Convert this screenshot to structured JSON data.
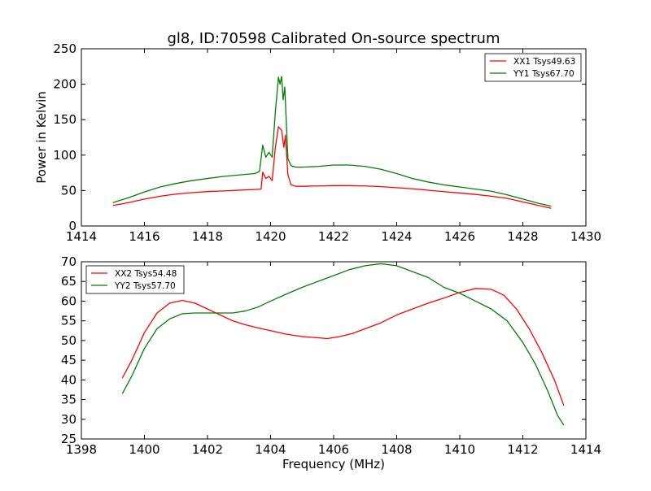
{
  "chart_data": [
    {
      "type": "line",
      "title": "gl8, ID:70598 Calibrated On-source spectrum",
      "xlabel": "",
      "ylabel": "Power in Kelvin",
      "xlim": [
        1414,
        1430
      ],
      "ylim": [
        0,
        250
      ],
      "xticks": [
        1414,
        1416,
        1418,
        1420,
        1422,
        1424,
        1426,
        1428,
        1430
      ],
      "yticks": [
        0,
        50,
        100,
        150,
        200,
        250
      ],
      "grid": false,
      "legend_position": "top-right",
      "series": [
        {
          "name": "XX1 Tsys49.63",
          "color": "#ff0000",
          "points": [
            [
              1415.0,
              29
            ],
            [
              1415.5,
              33
            ],
            [
              1416.0,
              38
            ],
            [
              1416.5,
              42
            ],
            [
              1417.0,
              45
            ],
            [
              1417.5,
              47
            ],
            [
              1418.0,
              48.5
            ],
            [
              1418.5,
              49.5
            ],
            [
              1419.0,
              50.5
            ],
            [
              1419.5,
              51.5
            ],
            [
              1419.7,
              52
            ],
            [
              1419.75,
              76
            ],
            [
              1419.85,
              67
            ],
            [
              1419.95,
              70
            ],
            [
              1420.05,
              64
            ],
            [
              1420.15,
              110
            ],
            [
              1420.25,
              140
            ],
            [
              1420.35,
              135
            ],
            [
              1420.42,
              111
            ],
            [
              1420.47,
              128
            ],
            [
              1420.55,
              72
            ],
            [
              1420.65,
              58
            ],
            [
              1420.8,
              56
            ],
            [
              1421.0,
              56
            ],
            [
              1421.5,
              56.5
            ],
            [
              1422.0,
              57
            ],
            [
              1422.5,
              57
            ],
            [
              1423.0,
              56.5
            ],
            [
              1423.5,
              55.5
            ],
            [
              1424.0,
              54
            ],
            [
              1424.5,
              52.5
            ],
            [
              1425.0,
              50.5
            ],
            [
              1425.5,
              48.5
            ],
            [
              1426.0,
              46.5
            ],
            [
              1426.5,
              44.5
            ],
            [
              1427.0,
              42
            ],
            [
              1427.5,
              39
            ],
            [
              1428.0,
              34
            ],
            [
              1428.5,
              29
            ],
            [
              1428.9,
              25
            ]
          ]
        },
        {
          "name": "YY1 Tsys67.70",
          "color": "#008000",
          "points": [
            [
              1415.0,
              33
            ],
            [
              1415.5,
              40
            ],
            [
              1416.0,
              48
            ],
            [
              1416.5,
              55
            ],
            [
              1417.0,
              60
            ],
            [
              1417.5,
              64
            ],
            [
              1418.0,
              67
            ],
            [
              1418.5,
              70
            ],
            [
              1419.0,
              72
            ],
            [
              1419.5,
              74
            ],
            [
              1419.65,
              77
            ],
            [
              1419.75,
              114
            ],
            [
              1419.85,
              97
            ],
            [
              1419.95,
              104
            ],
            [
              1420.05,
              97
            ],
            [
              1420.15,
              160
            ],
            [
              1420.25,
              210
            ],
            [
              1420.3,
              200
            ],
            [
              1420.35,
              211
            ],
            [
              1420.4,
              178
            ],
            [
              1420.45,
              196
            ],
            [
              1420.55,
              95
            ],
            [
              1420.65,
              85
            ],
            [
              1420.8,
              83
            ],
            [
              1421.0,
              83
            ],
            [
              1421.5,
              84
            ],
            [
              1422.0,
              86
            ],
            [
              1422.5,
              86
            ],
            [
              1423.0,
              84
            ],
            [
              1423.5,
              80
            ],
            [
              1424.0,
              74
            ],
            [
              1424.5,
              67
            ],
            [
              1425.0,
              62
            ],
            [
              1425.5,
              58
            ],
            [
              1426.0,
              55
            ],
            [
              1426.5,
              52
            ],
            [
              1427.0,
              49
            ],
            [
              1427.5,
              44
            ],
            [
              1428.0,
              38
            ],
            [
              1428.5,
              32
            ],
            [
              1428.9,
              28
            ]
          ]
        }
      ]
    },
    {
      "type": "line",
      "title": "",
      "xlabel": "Frequency (MHz)",
      "ylabel": "",
      "xlim": [
        1398,
        1414
      ],
      "ylim": [
        25,
        70
      ],
      "xticks": [
        1398,
        1400,
        1402,
        1404,
        1406,
        1408,
        1410,
        1412,
        1414
      ],
      "yticks": [
        25,
        30,
        35,
        40,
        45,
        50,
        55,
        60,
        65,
        70
      ],
      "grid": false,
      "legend_position": "top-left",
      "series": [
        {
          "name": "XX2 Tsys54.48",
          "color": "#ff0000",
          "points": [
            [
              1399.3,
              40.5
            ],
            [
              1399.6,
              45
            ],
            [
              1400.0,
              52
            ],
            [
              1400.4,
              57
            ],
            [
              1400.8,
              59.5
            ],
            [
              1401.2,
              60.2
            ],
            [
              1401.6,
              59.5
            ],
            [
              1402.0,
              58
            ],
            [
              1402.4,
              56.5
            ],
            [
              1402.8,
              55
            ],
            [
              1403.2,
              54
            ],
            [
              1403.6,
              53.2
            ],
            [
              1404.0,
              52.5
            ],
            [
              1404.5,
              51.6
            ],
            [
              1405.0,
              51
            ],
            [
              1405.5,
              50.7
            ],
            [
              1405.8,
              50.5
            ],
            [
              1406.2,
              51
            ],
            [
              1406.6,
              51.8
            ],
            [
              1407.0,
              53
            ],
            [
              1407.5,
              54.5
            ],
            [
              1408.0,
              56.5
            ],
            [
              1408.5,
              58
            ],
            [
              1409.0,
              59.5
            ],
            [
              1409.5,
              60.8
            ],
            [
              1410.0,
              62.2
            ],
            [
              1410.5,
              63.2
            ],
            [
              1411.0,
              63
            ],
            [
              1411.4,
              61.5
            ],
            [
              1411.8,
              58
            ],
            [
              1412.2,
              53
            ],
            [
              1412.6,
              47
            ],
            [
              1413.0,
              40
            ],
            [
              1413.3,
              33.5
            ]
          ]
        },
        {
          "name": "YY2 Tsys57.70",
          "color": "#008000",
          "points": [
            [
              1399.3,
              36.5
            ],
            [
              1399.6,
              41
            ],
            [
              1400.0,
              48
            ],
            [
              1400.4,
              53
            ],
            [
              1400.8,
              55.5
            ],
            [
              1401.2,
              56.8
            ],
            [
              1401.6,
              57
            ],
            [
              1402.0,
              57
            ],
            [
              1402.4,
              57
            ],
            [
              1402.8,
              57
            ],
            [
              1403.2,
              57.5
            ],
            [
              1403.6,
              58.5
            ],
            [
              1404.0,
              60
            ],
            [
              1404.5,
              61.8
            ],
            [
              1405.0,
              63.5
            ],
            [
              1405.5,
              65
            ],
            [
              1406.0,
              66.5
            ],
            [
              1406.5,
              68
            ],
            [
              1407.0,
              69
            ],
            [
              1407.5,
              69.5
            ],
            [
              1408.0,
              69
            ],
            [
              1408.5,
              67.5
            ],
            [
              1409.0,
              66
            ],
            [
              1409.5,
              63.5
            ],
            [
              1410.0,
              62
            ],
            [
              1410.5,
              60
            ],
            [
              1411.0,
              58
            ],
            [
              1411.5,
              55
            ],
            [
              1412.0,
              49.5
            ],
            [
              1412.4,
              44
            ],
            [
              1412.8,
              37
            ],
            [
              1413.1,
              31
            ],
            [
              1413.3,
              28.5
            ]
          ]
        }
      ]
    }
  ]
}
